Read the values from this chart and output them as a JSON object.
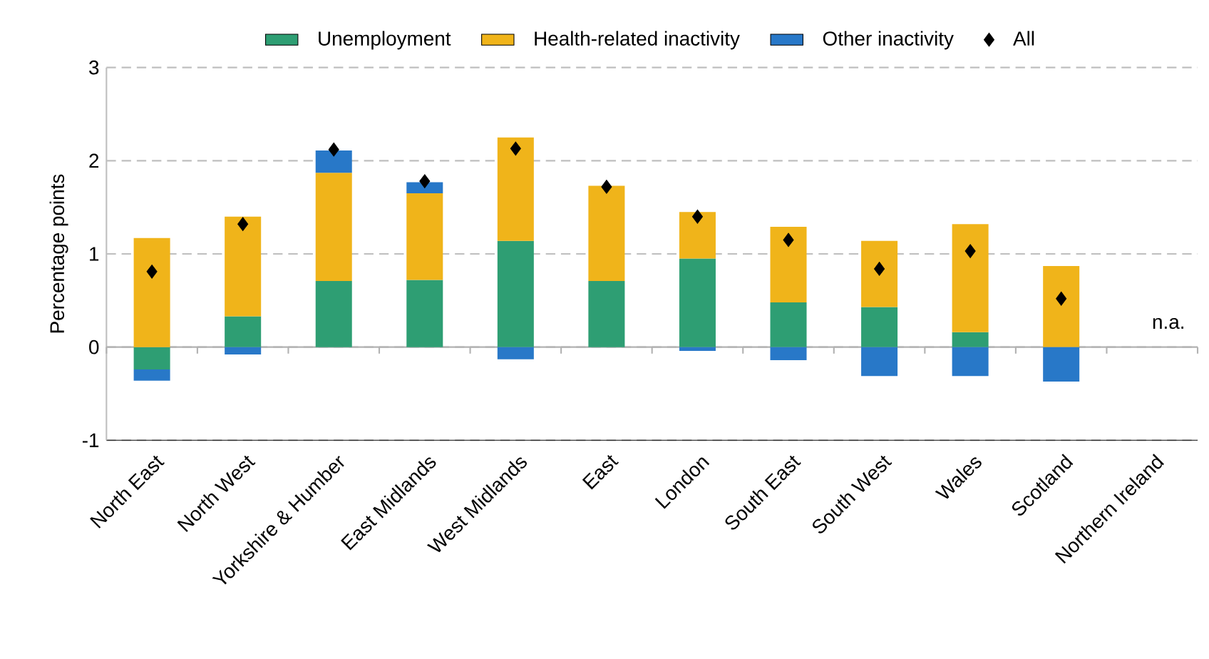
{
  "chart_data": {
    "type": "bar",
    "stacked": true,
    "ylabel": "Percentage points",
    "categories": [
      "North East",
      "North West",
      "Yorkshire & Humber",
      "East Midlands",
      "West Midlands",
      "East",
      "London",
      "South East",
      "South West",
      "Wales",
      "Scotland",
      "Northern Ireland"
    ],
    "series": [
      {
        "name": "Unemployment",
        "color": "#2e9e73",
        "values": [
          -0.24,
          0.33,
          0.71,
          0.72,
          1.14,
          0.71,
          0.95,
          0.48,
          0.43,
          0.16,
          0,
          null
        ]
      },
      {
        "name": "Health-related inactivity",
        "color": "#f0b41a",
        "values": [
          1.17,
          1.07,
          1.16,
          0.93,
          1.11,
          1.02,
          0.5,
          0.81,
          0.71,
          1.16,
          0.87,
          null
        ]
      },
      {
        "name": "Other inactivity",
        "color": "#2878c8",
        "values": [
          -0.12,
          -0.08,
          0.24,
          0.12,
          -0.13,
          0,
          -0.04,
          -0.14,
          -0.31,
          -0.31,
          -0.37,
          null
        ]
      },
      {
        "name": "All",
        "type": "scatter",
        "marker": "diamond",
        "color": "#000000",
        "x": [
          "North East",
          "North West",
          "Yorkshire & Humber",
          "East Midlands",
          "West Midlands",
          "East",
          "London",
          "South East",
          "South West",
          "Wales",
          "Scotland",
          "Northern Ireland"
        ],
        "values": [
          0.81,
          1.32,
          2.12,
          1.78,
          2.13,
          1.72,
          1.4,
          1.15,
          0.84,
          1.03,
          0.52,
          null
        ]
      }
    ],
    "annotations": [
      "n.a."
    ],
    "ylim": [
      -1,
      3
    ],
    "yticks": [
      -1,
      0,
      1,
      2,
      3
    ],
    "grid": "y",
    "legend": "top"
  }
}
